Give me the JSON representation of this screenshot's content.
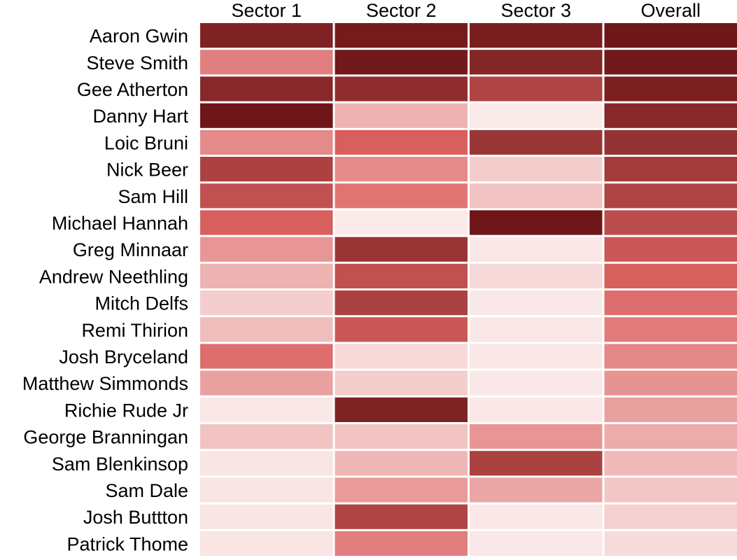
{
  "chart_data": {
    "type": "heatmap",
    "columns": [
      "Sector 1",
      "Sector 2",
      "Sector 3",
      "Overall"
    ],
    "rows": [
      "Aaron Gwin",
      "Steve Smith",
      "Gee Atherton",
      "Danny Hart",
      "Loic Bruni",
      "Nick Beer",
      "Sam Hill",
      "Michael Hannah",
      "Greg Minnaar",
      "Andrew Neethling",
      "Mitch Delfs",
      "Remi Thirion",
      "Josh Bryceland",
      "Matthew Simmonds",
      "Richie Rude Jr",
      "George Branningan",
      "Sam Blenkinsop",
      "Sam Dale",
      "Josh Buttton",
      "Patrick Thome"
    ],
    "values": [
      [
        0.92,
        0.97,
        0.95,
        1.0
      ],
      [
        0.4,
        0.98,
        0.9,
        0.98
      ],
      [
        0.88,
        0.85,
        0.7,
        0.94
      ],
      [
        1.0,
        0.22,
        0.02,
        0.88
      ],
      [
        0.36,
        0.52,
        0.8,
        0.82
      ],
      [
        0.72,
        0.36,
        0.12,
        0.76
      ],
      [
        0.62,
        0.44,
        0.16,
        0.7
      ],
      [
        0.52,
        0.02,
        1.0,
        0.64
      ],
      [
        0.32,
        0.8,
        0.03,
        0.58
      ],
      [
        0.22,
        0.62,
        0.08,
        0.52
      ],
      [
        0.12,
        0.72,
        0.03,
        0.46
      ],
      [
        0.18,
        0.58,
        0.03,
        0.41
      ],
      [
        0.46,
        0.08,
        0.03,
        0.37
      ],
      [
        0.28,
        0.12,
        0.03,
        0.33
      ],
      [
        0.03,
        0.92,
        0.03,
        0.28
      ],
      [
        0.16,
        0.16,
        0.32,
        0.24
      ],
      [
        0.04,
        0.2,
        0.72,
        0.19
      ],
      [
        0.04,
        0.3,
        0.26,
        0.15
      ],
      [
        0.04,
        0.7,
        0.03,
        0.11
      ],
      [
        0.04,
        0.4,
        0.03,
        0.07
      ]
    ],
    "color_scale": {
      "low": "#fbf0ef",
      "mid": "#db6362",
      "high": "#6e1618"
    },
    "legend": "none",
    "grid": false
  }
}
